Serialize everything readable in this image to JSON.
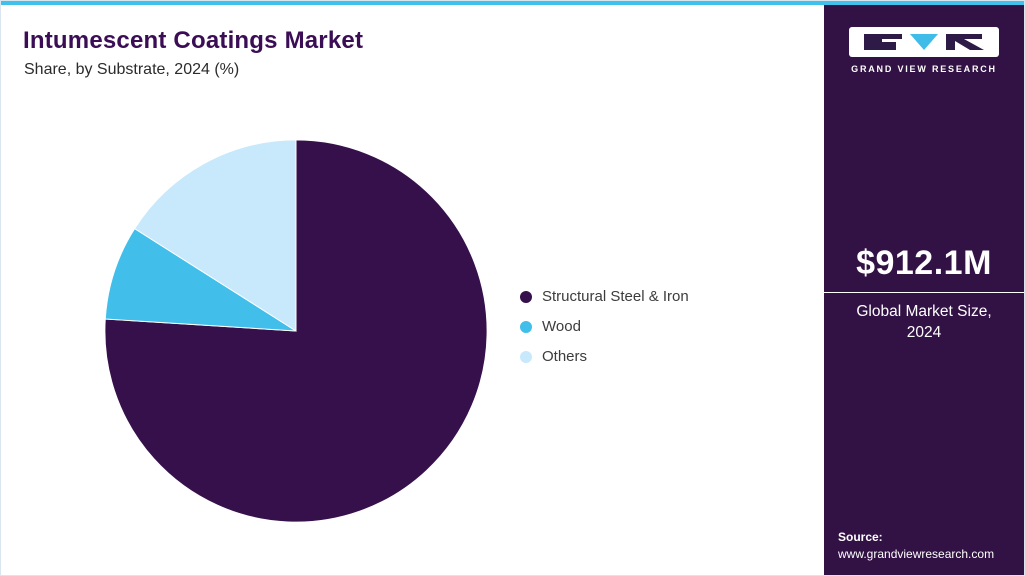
{
  "header": {
    "title": "Intumescent Coatings Market",
    "subtitle": "Share, by Substrate, 2024 (%)"
  },
  "chart_data": {
    "type": "pie",
    "title": "Intumescent Coatings Market Share, by Substrate, 2024 (%)",
    "labels": [
      "Structural Steel & Iron",
      "Wood",
      "Others"
    ],
    "values": [
      76,
      8,
      16
    ],
    "unit": "%",
    "colors": [
      "#36104B",
      "#41BFEA",
      "#C7E9FB"
    ],
    "start_angle_deg": 0,
    "direction": "clockwise",
    "legend_position": "right",
    "grid": false
  },
  "sidebar": {
    "brand_name": "GRAND VIEW RESEARCH",
    "market_size_value": "$912.1M",
    "market_size_label": "Global Market Size, 2024",
    "source_label": "Source:",
    "source_url": "www.grandviewresearch.com"
  },
  "theme": {
    "accent_cyan": "#3FC1EC",
    "sidebar_bg": "#321245",
    "title_color": "#3A0D55"
  }
}
